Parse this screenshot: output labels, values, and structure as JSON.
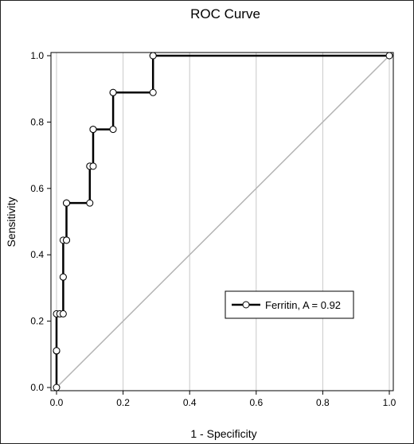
{
  "chart_data": {
    "type": "line",
    "title": "ROC Curve",
    "xlabel": "1 - Specificity",
    "ylabel": "Sensitivity",
    "xlim": [
      0,
      1
    ],
    "ylim": [
      0,
      1
    ],
    "xticks": [
      "0.0",
      "0.2",
      "0.4",
      "0.6",
      "0.8",
      "1.0"
    ],
    "yticks": [
      "0.0",
      "0.2",
      "0.4",
      "0.6",
      "0.8",
      "1.0"
    ],
    "grid": "vertical",
    "legend_position": "lower-right",
    "colors": {
      "curve": "#000000",
      "marker_fill": "#ffffff",
      "diagonal": "#b4b4b4",
      "grid": "#c8c8c8"
    },
    "series": [
      {
        "name": "Ferritin, A = 0.92",
        "x": [
          0.0,
          0.0,
          0.0,
          0.0,
          0.01,
          0.02,
          0.02,
          0.02,
          0.02,
          0.03,
          0.03,
          0.03,
          0.03,
          0.1,
          0.1,
          0.1,
          0.11,
          0.11,
          0.11,
          0.17,
          0.17,
          0.17,
          0.29,
          0.29,
          0.29,
          1.0
        ],
        "y": [
          0.0,
          0.11,
          0.111,
          0.222,
          0.222,
          0.222,
          0.333,
          0.333,
          0.444,
          0.444,
          0.444,
          0.556,
          0.556,
          0.556,
          0.667,
          0.667,
          0.667,
          0.778,
          0.778,
          0.778,
          0.889,
          0.889,
          0.889,
          1.0,
          1.0,
          1.0
        ]
      }
    ],
    "reference_line": {
      "x": [
        0,
        1
      ],
      "y": [
        0,
        1
      ]
    }
  }
}
